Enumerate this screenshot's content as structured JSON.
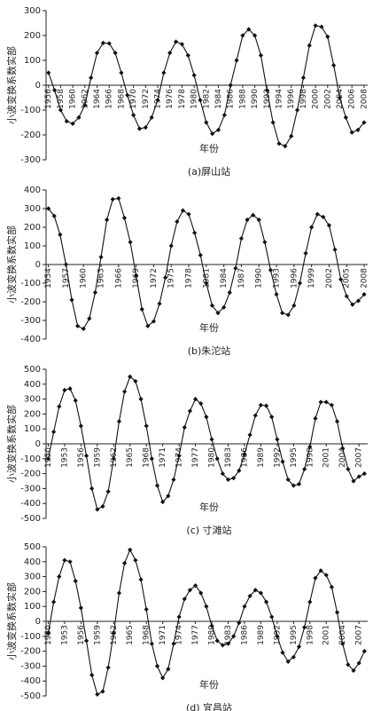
{
  "chart_data": [
    {
      "type": "line",
      "title": "(a)屏山站",
      "x_label": "年份",
      "y_label": "小波变换系数实部",
      "color": "#111111",
      "x": [
        1956,
        1957,
        1958,
        1959,
        1960,
        1961,
        1962,
        1963,
        1964,
        1965,
        1966,
        1967,
        1968,
        1969,
        1970,
        1971,
        1972,
        1973,
        1974,
        1975,
        1976,
        1977,
        1978,
        1979,
        1980,
        1981,
        1982,
        1983,
        1984,
        1985,
        1986,
        1987,
        1988,
        1989,
        1990,
        1991,
        1992,
        1993,
        1994,
        1995,
        1996,
        1997,
        1998,
        1999,
        2000,
        2001,
        2002,
        2003,
        2004,
        2005,
        2006,
        2007,
        2008
      ],
      "values": [
        50,
        -20,
        -100,
        -145,
        -155,
        -130,
        -80,
        30,
        130,
        170,
        168,
        130,
        50,
        -40,
        -120,
        -175,
        -170,
        -130,
        -60,
        50,
        130,
        175,
        165,
        120,
        40,
        -60,
        -150,
        -195,
        -180,
        -120,
        0,
        100,
        200,
        225,
        200,
        120,
        -20,
        -150,
        -235,
        -245,
        -205,
        -100,
        30,
        160,
        240,
        235,
        195,
        80,
        -50,
        -130,
        -190,
        -180,
        -150
      ],
      "xlim": [
        1955.6,
        2008.6
      ],
      "ylim": [
        -300,
        300
      ],
      "xticks": [
        1956,
        1958,
        1960,
        1962,
        1964,
        1966,
        1968,
        1970,
        1972,
        1974,
        1976,
        1978,
        1980,
        1982,
        1984,
        1986,
        1988,
        1990,
        1992,
        1994,
        1996,
        1998,
        2000,
        2002,
        2004,
        2006,
        2008
      ],
      "yticks": [
        -300,
        -200,
        -100,
        0,
        100,
        200,
        300
      ]
    },
    {
      "type": "line",
      "title": "(b)朱沱站",
      "x_label": "年份",
      "y_label": "小波变换系数实部",
      "color": "#111111",
      "x": [
        1954,
        1955,
        1956,
        1957,
        1958,
        1959,
        1960,
        1961,
        1962,
        1963,
        1964,
        1965,
        1966,
        1967,
        1968,
        1969,
        1970,
        1971,
        1972,
        1973,
        1974,
        1975,
        1976,
        1977,
        1978,
        1979,
        1980,
        1981,
        1982,
        1983,
        1984,
        1985,
        1986,
        1987,
        1988,
        1989,
        1990,
        1991,
        1992,
        1993,
        1994,
        1995,
        1996,
        1997,
        1998,
        1999,
        2000,
        2001,
        2002,
        2003,
        2004,
        2005,
        2006,
        2007,
        2008
      ],
      "values": [
        300,
        260,
        160,
        0,
        -190,
        -330,
        -345,
        -290,
        -150,
        40,
        240,
        350,
        355,
        250,
        120,
        -60,
        -240,
        -330,
        -305,
        -210,
        -70,
        100,
        230,
        290,
        270,
        170,
        50,
        -100,
        -220,
        -260,
        -230,
        -150,
        -20,
        140,
        240,
        265,
        240,
        120,
        -30,
        -160,
        -260,
        -270,
        -220,
        -100,
        60,
        200,
        270,
        255,
        210,
        80,
        -80,
        -170,
        -215,
        -195,
        -160
      ],
      "xlim": [
        1953.6,
        2008.6
      ],
      "ylim": [
        -400,
        400
      ],
      "xticks": [
        1954,
        1957,
        1960,
        1963,
        1966,
        1969,
        1972,
        1975,
        1978,
        1981,
        1984,
        1987,
        1990,
        1993,
        1996,
        1999,
        2002,
        2005,
        2008
      ],
      "yticks": [
        -400,
        -300,
        -200,
        -100,
        0,
        100,
        200,
        300,
        400
      ]
    },
    {
      "type": "line",
      "title": "(c) 寸滩站",
      "x_label": "年份",
      "y_label": "小波变换系数实部",
      "color": "#111111",
      "x": [
        1950,
        1951,
        1952,
        1953,
        1954,
        1955,
        1956,
        1957,
        1958,
        1959,
        1960,
        1961,
        1962,
        1963,
        1964,
        1965,
        1966,
        1967,
        1968,
        1969,
        1970,
        1971,
        1972,
        1973,
        1974,
        1975,
        1976,
        1977,
        1978,
        1979,
        1980,
        1981,
        1982,
        1983,
        1984,
        1985,
        1986,
        1987,
        1988,
        1989,
        1990,
        1991,
        1992,
        1993,
        1994,
        1995,
        1996,
        1997,
        1998,
        1999,
        2000,
        2001,
        2002,
        2003,
        2004,
        2005,
        2006,
        2007,
        2008
      ],
      "values": [
        -100,
        80,
        250,
        360,
        370,
        290,
        120,
        -80,
        -300,
        -440,
        -420,
        -320,
        -100,
        150,
        350,
        450,
        420,
        300,
        120,
        -100,
        -280,
        -390,
        -350,
        -240,
        -80,
        110,
        220,
        300,
        270,
        180,
        30,
        -100,
        -200,
        -240,
        -230,
        -180,
        -70,
        60,
        190,
        260,
        255,
        180,
        30,
        -120,
        -240,
        -280,
        -270,
        -170,
        -20,
        170,
        280,
        280,
        260,
        150,
        -30,
        -170,
        -250,
        -220,
        -200
      ],
      "xlim": [
        1949.6,
        2008.6
      ],
      "ylim": [
        -500,
        500
      ],
      "xticks": [
        1950,
        1953,
        1956,
        1959,
        1962,
        1965,
        1968,
        1971,
        1974,
        1977,
        1980,
        1983,
        1986,
        1989,
        1992,
        1995,
        1998,
        2001,
        2004,
        2007
      ],
      "yticks": [
        -500,
        -400,
        -300,
        -200,
        -100,
        0,
        100,
        200,
        300,
        400,
        500
      ]
    },
    {
      "type": "line",
      "title": "(d) 宜昌站",
      "x_label": "年份",
      "y_label": "小波变换系数实部",
      "color": "#111111",
      "x": [
        1950,
        1951,
        1952,
        1953,
        1954,
        1955,
        1956,
        1957,
        1958,
        1959,
        1960,
        1961,
        1962,
        1963,
        1964,
        1965,
        1966,
        1967,
        1968,
        1969,
        1970,
        1971,
        1972,
        1973,
        1974,
        1975,
        1976,
        1977,
        1978,
        1979,
        1980,
        1981,
        1982,
        1983,
        1984,
        1985,
        1986,
        1987,
        1988,
        1989,
        1990,
        1991,
        1992,
        1993,
        1994,
        1995,
        1996,
        1997,
        1998,
        1999,
        2000,
        2001,
        2002,
        2003,
        2004,
        2005,
        2006,
        2007,
        2008
      ],
      "values": [
        -80,
        130,
        300,
        410,
        400,
        270,
        90,
        -130,
        -360,
        -490,
        -470,
        -310,
        -80,
        190,
        390,
        480,
        410,
        280,
        80,
        -150,
        -300,
        -380,
        -320,
        -150,
        30,
        150,
        210,
        240,
        190,
        100,
        -30,
        -130,
        -160,
        -150,
        -100,
        -10,
        100,
        170,
        210,
        190,
        130,
        30,
        -100,
        -210,
        -270,
        -240,
        -170,
        -40,
        130,
        290,
        340,
        310,
        230,
        60,
        -150,
        -290,
        -330,
        -280,
        -200
      ],
      "xlim": [
        1949.6,
        2008.6
      ],
      "ylim": [
        -500,
        500
      ],
      "xticks": [
        1950,
        1953,
        1956,
        1959,
        1962,
        1965,
        1968,
        1971,
        1974,
        1977,
        1980,
        1983,
        1986,
        1989,
        1992,
        1995,
        1998,
        2001,
        2004,
        2007
      ],
      "yticks": [
        -500,
        -400,
        -300,
        -200,
        -100,
        0,
        100,
        200,
        300,
        400,
        500
      ]
    }
  ]
}
